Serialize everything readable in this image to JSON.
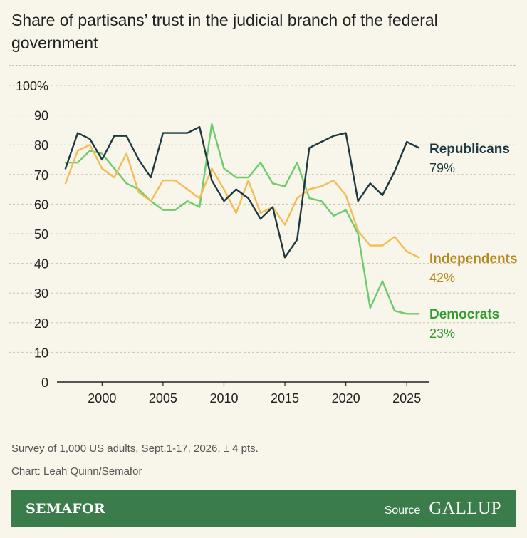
{
  "chart_data": {
    "type": "line",
    "title": "Share of partisans’ trust in the judicial branch of the federal government",
    "xlabel": "",
    "ylabel": "",
    "xlim": [
      1996.3,
      2026.8
    ],
    "ylim": [
      0,
      100
    ],
    "x_ticks": [
      2000,
      2005,
      2010,
      2015,
      2020,
      2025
    ],
    "y_ticks": [
      0,
      10,
      20,
      30,
      40,
      50,
      60,
      70,
      80,
      90,
      100
    ],
    "y_tick_labels": [
      "0",
      "10",
      "20",
      "30",
      "40",
      "50",
      "60",
      "70",
      "80",
      "90",
      "100%"
    ],
    "grid": "horizontal dashed",
    "legend": "direct labels at line ends",
    "series": [
      {
        "name": "Republicans",
        "end_label": "79%",
        "color": "#1e3a40",
        "x": [
          1997,
          1998,
          1999,
          2000,
          2001,
          2002,
          2003,
          2004,
          2005,
          2006,
          2007,
          2008,
          2009,
          2010,
          2011,
          2012,
          2013,
          2014,
          2015,
          2016,
          2017,
          2018,
          2019,
          2020,
          2021,
          2022,
          2023,
          2024,
          2025,
          2026
        ],
        "values": [
          72,
          84,
          82,
          75,
          83,
          83,
          75,
          69,
          84,
          84,
          84,
          86,
          68,
          61,
          65,
          62,
          55,
          59,
          42,
          48,
          79,
          81,
          83,
          84,
          61,
          67,
          63,
          71,
          81,
          79
        ]
      },
      {
        "name": "Independents",
        "end_label": "42%",
        "color": "#f2bd55",
        "label_color": "#b58a1e",
        "x": [
          1997,
          1998,
          1999,
          2000,
          2001,
          2002,
          2003,
          2004,
          2005,
          2006,
          2007,
          2008,
          2009,
          2010,
          2011,
          2012,
          2013,
          2014,
          2015,
          2016,
          2017,
          2018,
          2019,
          2020,
          2021,
          2022,
          2023,
          2024,
          2025,
          2026
        ],
        "values": [
          67,
          78,
          80,
          72,
          69,
          77,
          64,
          61,
          68,
          68,
          65,
          62,
          72,
          65,
          57,
          68,
          57,
          59,
          53,
          62,
          65,
          66,
          68,
          63,
          51,
          46,
          46,
          49,
          44,
          42
        ]
      },
      {
        "name": "Democrats",
        "end_label": "23%",
        "color": "#6ccc6c",
        "label_color": "#2f9c2f",
        "x": [
          1997,
          1998,
          1999,
          2000,
          2001,
          2002,
          2003,
          2004,
          2005,
          2006,
          2007,
          2008,
          2009,
          2010,
          2011,
          2012,
          2013,
          2014,
          2015,
          2016,
          2017,
          2018,
          2019,
          2020,
          2021,
          2022,
          2023,
          2024,
          2025,
          2026
        ],
        "values": [
          74,
          74,
          78,
          77,
          72,
          67,
          65,
          61,
          58,
          58,
          61,
          59,
          87,
          72,
          69,
          69,
          74,
          67,
          66,
          74,
          62,
          61,
          56,
          58,
          50,
          25,
          34,
          24,
          23,
          23
        ]
      }
    ]
  },
  "notes": {
    "survey": "Survey of 1,000 US adults, Sept.1-17, 2026, ± 4 pts.",
    "credit": "Chart: Leah Quinn/Semafor"
  },
  "footer": {
    "brand": "SEMAFOR",
    "source_label": "Source",
    "source_brand": "GALLUP",
    "background": "#3a7d4a"
  },
  "colors": {
    "background": "#f8f5ea",
    "grid": "#c9c4b3",
    "axis": "#222222"
  }
}
